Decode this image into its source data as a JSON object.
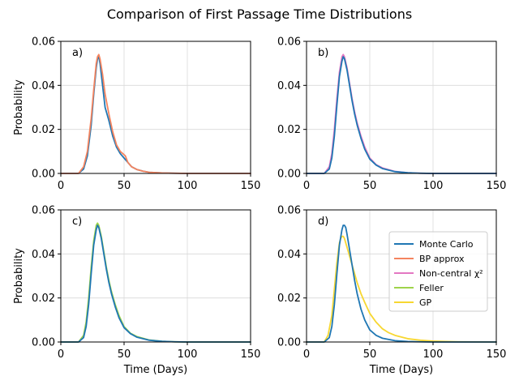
{
  "chart_data": {
    "type": "line",
    "title": "Comparison of First Passage Time Distributions",
    "xlim": [
      0,
      150
    ],
    "ylim": [
      0,
      0.06
    ],
    "xticks": [
      0,
      50,
      100,
      150
    ],
    "yticks": [
      "0.00",
      "0.02",
      "0.04",
      "0.06"
    ],
    "grid": true,
    "colors": {
      "Monte Carlo": "#1f77b4",
      "BP approx": "#f4845f",
      "Non-central χ²": "#e377c2",
      "Feller": "#9ed34a",
      "GP": "#f7d731"
    },
    "legend": {
      "panel": "d",
      "placement": "center-right",
      "entries": [
        {
          "series": "Monte Carlo",
          "label": "Monte Carlo"
        },
        {
          "series": "BP approx",
          "label": "BP approx"
        },
        {
          "series": "Non-central χ²",
          "label": "Non-central χ²"
        },
        {
          "series": "Feller",
          "label": "Feller"
        },
        {
          "series": "GP",
          "label": "GP"
        }
      ]
    },
    "panels": [
      {
        "id": "a",
        "label": "a)",
        "row": 0,
        "col": 0,
        "xlabel": "",
        "ylabel": "Probability",
        "series": [
          {
            "name": "Monte Carlo",
            "x": [
              0,
              14,
              18,
              21,
              24,
              26,
              28,
              29,
              30,
              31,
              33,
              35,
              38,
              41,
              44,
              47,
              50,
              53,
              56,
              60,
              65,
              70,
              80,
              90,
              100,
              120,
              150
            ],
            "y": [
              0,
              0,
              0.002,
              0.008,
              0.022,
              0.036,
              0.048,
              0.052,
              0.053,
              0.05,
              0.04,
              0.03,
              0.024,
              0.017,
              0.012,
              0.009,
              0.007,
              0.005,
              0.003,
              0.0018,
              0.001,
              0.0005,
              0.0002,
              0.0001,
              0,
              0,
              0
            ]
          },
          {
            "name": "BP approx",
            "x": [
              0,
              14,
              18,
              21,
              24,
              26,
              28,
              29,
              30,
              31,
              33,
              35,
              38,
              41,
              44,
              47,
              49,
              51,
              53,
              56,
              60,
              65,
              70,
              80,
              90,
              100,
              120,
              150
            ],
            "y": [
              0,
              0,
              0.003,
              0.01,
              0.025,
              0.038,
              0.05,
              0.053,
              0.054,
              0.052,
              0.045,
              0.036,
              0.027,
              0.019,
              0.013,
              0.01,
              0.009,
              0.008,
              0.005,
              0.003,
              0.0018,
              0.001,
              0.0005,
              0.0002,
              0.0001,
              0,
              0,
              0
            ]
          }
        ]
      },
      {
        "id": "b",
        "label": "b)",
        "row": 0,
        "col": 1,
        "xlabel": "",
        "ylabel": "",
        "series": [
          {
            "name": "Non-central χ²",
            "x": [
              0,
              14,
              18,
              20,
              22,
              24,
              26,
              28,
              29,
              30,
              32,
              34,
              36,
              38,
              40,
              43,
              46,
              50,
              55,
              60,
              70,
              80,
              90,
              100,
              120,
              150
            ],
            "y": [
              0,
              0,
              0.003,
              0.009,
              0.02,
              0.034,
              0.046,
              0.053,
              0.054,
              0.053,
              0.048,
              0.041,
              0.034,
              0.028,
              0.023,
              0.017,
              0.012,
              0.007,
              0.004,
              0.0025,
              0.0009,
              0.0003,
              0.0001,
              0,
              0,
              0
            ]
          },
          {
            "name": "Monte Carlo",
            "x": [
              0,
              14,
              18,
              20,
              22,
              24,
              26,
              28,
              29,
              30,
              32,
              34,
              36,
              38,
              40,
              43,
              46,
              50,
              55,
              60,
              70,
              80,
              90,
              100,
              120,
              150
            ],
            "y": [
              0,
              0,
              0.002,
              0.007,
              0.017,
              0.031,
              0.044,
              0.051,
              0.053,
              0.052,
              0.047,
              0.04,
              0.033,
              0.027,
              0.022,
              0.016,
              0.011,
              0.0065,
              0.0038,
              0.0022,
              0.0008,
              0.0003,
              0.0001,
              0,
              0,
              0
            ]
          }
        ]
      },
      {
        "id": "c",
        "label": "c)",
        "row": 1,
        "col": 0,
        "xlabel": "Time (Days)",
        "ylabel": "Probability",
        "series": [
          {
            "name": "Feller",
            "x": [
              0,
              14,
              18,
              20,
              22,
              24,
              26,
              28,
              29,
              30,
              32,
              34,
              36,
              38,
              40,
              43,
              46,
              50,
              55,
              60,
              70,
              80,
              90,
              100,
              120,
              150
            ],
            "y": [
              0,
              0,
              0.003,
              0.009,
              0.02,
              0.034,
              0.046,
              0.053,
              0.054,
              0.053,
              0.048,
              0.041,
              0.034,
              0.028,
              0.023,
              0.017,
              0.012,
              0.007,
              0.004,
              0.0025,
              0.0009,
              0.0003,
              0.0001,
              0,
              0,
              0
            ]
          },
          {
            "name": "Monte Carlo",
            "x": [
              0,
              14,
              18,
              20,
              22,
              24,
              26,
              28,
              29,
              30,
              32,
              34,
              36,
              38,
              40,
              43,
              46,
              50,
              55,
              60,
              70,
              80,
              90,
              100,
              120,
              150
            ],
            "y": [
              0,
              0,
              0.002,
              0.007,
              0.017,
              0.031,
              0.044,
              0.051,
              0.053,
              0.052,
              0.047,
              0.04,
              0.033,
              0.027,
              0.022,
              0.016,
              0.011,
              0.0065,
              0.0038,
              0.0022,
              0.0008,
              0.0003,
              0.0001,
              0,
              0,
              0
            ]
          }
        ]
      },
      {
        "id": "d",
        "label": "d)",
        "row": 1,
        "col": 1,
        "xlabel": "Time (Days)",
        "ylabel": "",
        "series": [
          {
            "name": "GP",
            "x": [
              0,
              14,
              17,
              20,
              22,
              24,
              26,
              27,
              28,
              29,
              30,
              32,
              34,
              36,
              38,
              40,
              43,
              46,
              50,
              55,
              60,
              65,
              70,
              80,
              90,
              100,
              110,
              120,
              150
            ],
            "y": [
              0,
              0,
              0.003,
              0.012,
              0.024,
              0.036,
              0.045,
              0.047,
              0.048,
              0.048,
              0.047,
              0.043,
              0.039,
              0.035,
              0.031,
              0.027,
              0.022,
              0.018,
              0.013,
              0.009,
              0.006,
              0.0042,
              0.003,
              0.0015,
              0.0008,
              0.0004,
              0.0002,
              0.0001,
              0
            ]
          },
          {
            "name": "Monte Carlo",
            "x": [
              0,
              14,
              18,
              20,
              22,
              24,
              26,
              28,
              29,
              30,
              31,
              32,
              34,
              36,
              38,
              40,
              43,
              46,
              50,
              55,
              60,
              70,
              80,
              90,
              100,
              120,
              150
            ],
            "y": [
              0,
              0,
              0.002,
              0.007,
              0.017,
              0.031,
              0.044,
              0.051,
              0.053,
              0.053,
              0.052,
              0.049,
              0.042,
              0.035,
              0.028,
              0.022,
              0.015,
              0.01,
              0.0055,
              0.003,
              0.0017,
              0.0006,
              0.0002,
              0.0001,
              0,
              0,
              0
            ]
          }
        ]
      }
    ]
  }
}
